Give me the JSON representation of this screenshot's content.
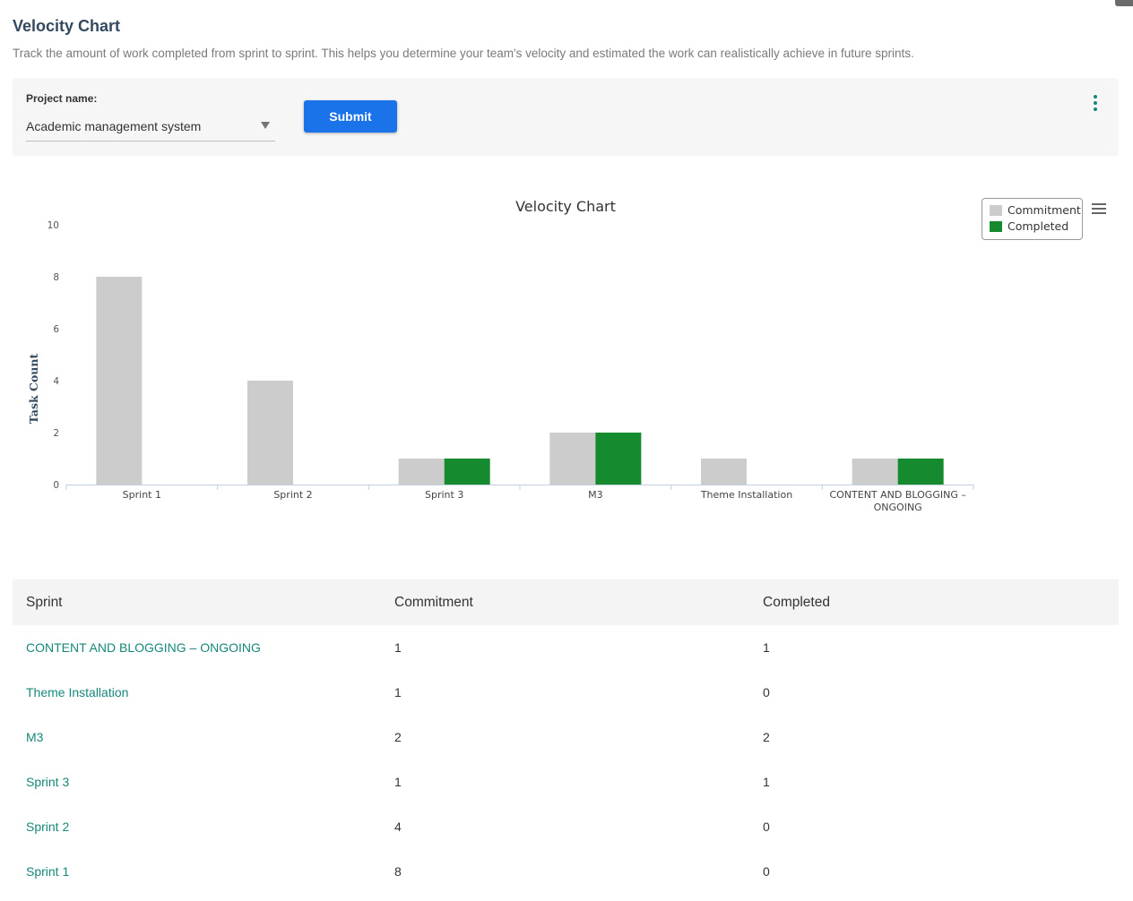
{
  "header": {
    "title": "Velocity Chart",
    "description": "Track the amount of work completed from sprint to sprint. This helps you determine your team's velocity and estimated the work can realistically achieve in future sprints."
  },
  "filter": {
    "project_label": "Project name:",
    "project_value": "Academic management system",
    "submit_label": "Submit",
    "more_icon": "vertical-dots-icon"
  },
  "colors": {
    "accent": "#16877a",
    "button": "#1a73e8",
    "commitment": "#cccccc",
    "completed": "#168a2e"
  },
  "chart_data": {
    "type": "bar",
    "title": "Velocity Chart",
    "ylabel": "Task Count",
    "xlabel": "",
    "ylim": [
      0,
      10
    ],
    "yticks": [
      0,
      2,
      4,
      6,
      8,
      10
    ],
    "categories": [
      "Sprint 1",
      "Sprint 2",
      "Sprint 3",
      "M3",
      "Theme Installation",
      "CONTENT AND BLOGGING – ONGOING"
    ],
    "series": [
      {
        "name": "Commitment",
        "values": [
          8,
          4,
          1,
          2,
          1,
          1
        ],
        "color": "#cccccc"
      },
      {
        "name": "Completed",
        "values": [
          0,
          0,
          1,
          2,
          0,
          1
        ],
        "color": "#168a2e"
      }
    ],
    "legend_position": "top-right",
    "grid": false,
    "menu_icon": "hamburger-menu-icon"
  },
  "table": {
    "headers": [
      "Sprint",
      "Commitment",
      "Completed"
    ],
    "rows": [
      [
        "CONTENT AND BLOGGING – ONGOING",
        "1",
        "1"
      ],
      [
        "Theme Installation",
        "1",
        "0"
      ],
      [
        "M3",
        "2",
        "2"
      ],
      [
        "Sprint 3",
        "1",
        "1"
      ],
      [
        "Sprint 2",
        "4",
        "0"
      ],
      [
        "Sprint 1",
        "8",
        "0"
      ]
    ]
  }
}
